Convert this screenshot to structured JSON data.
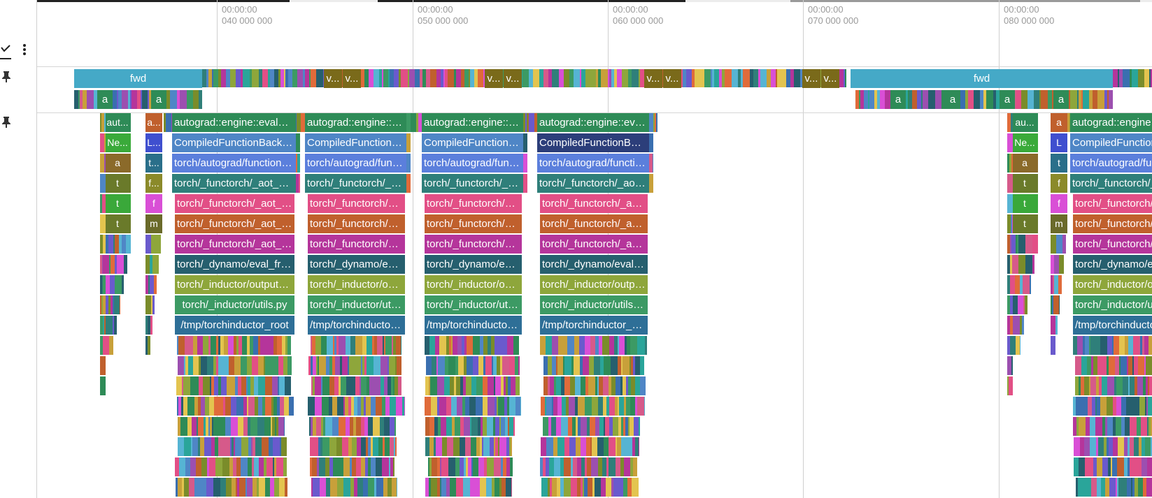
{
  "controls": {
    "chevron_icon": "chevron-check-icon",
    "menu_icon": "kebab-menu-icon",
    "pin_icon": "pin-icon"
  },
  "timeline": {
    "ticks": [
      {
        "time": "00:00:00",
        "ns": "040 000 000"
      },
      {
        "time": "00:00:00",
        "ns": "050 000 000"
      },
      {
        "time": "00:00:00",
        "ns": "060 000 000"
      },
      {
        "time": "00:00:00",
        "ns": "070 000 000"
      },
      {
        "time": "00:00:00",
        "ns": "080 000 000"
      }
    ]
  },
  "track1": {
    "fwd_label": "fwd",
    "a_label": "a",
    "v_label": "v..."
  },
  "track2": {
    "block_labels": [
      "autograd::engine::evaluate_function",
      "CompiledFunctionBackward",
      "torch/autograd/function.py",
      "torch/_functorch/_aot_autograd",
      "torch/_functorch/_aot_autograd",
      "torch/_functorch/_aot_autograd",
      "torch/_functorch/_aot_autograd",
      "torch/_dynamo/eval_frame.py",
      "torch/_inductor/output_code.py",
      "torch/_inductor/utils.py",
      "/tmp/torchinductor_root"
    ],
    "left_col1": [
      "aut...",
      "Ne...",
      "a",
      "t",
      "t",
      "t"
    ],
    "left_col2": [
      "a...",
      "L...",
      "t...",
      "f...",
      "f",
      "m"
    ],
    "right_col1": [
      "au...",
      "Ne...",
      "a",
      "t",
      "t",
      "t"
    ],
    "right_col2": [
      "a",
      "L",
      "t",
      "f",
      "f",
      "m"
    ]
  },
  "colors": {
    "teal_green": "#2e8b57",
    "steel_blue": "#4f86c6",
    "blue": "#5b7fdc",
    "dark_teal": "#2f7f7a",
    "pink": "#e24f86",
    "rust": "#c0602d",
    "magenta": "#b5359b",
    "dark_slate": "#265f6e",
    "olive": "#8ea63b",
    "sea_green": "#3c9a64",
    "ocean": "#2e6f97",
    "navy": "#2c3e7a",
    "fwd_blue": "#45a9c7"
  }
}
